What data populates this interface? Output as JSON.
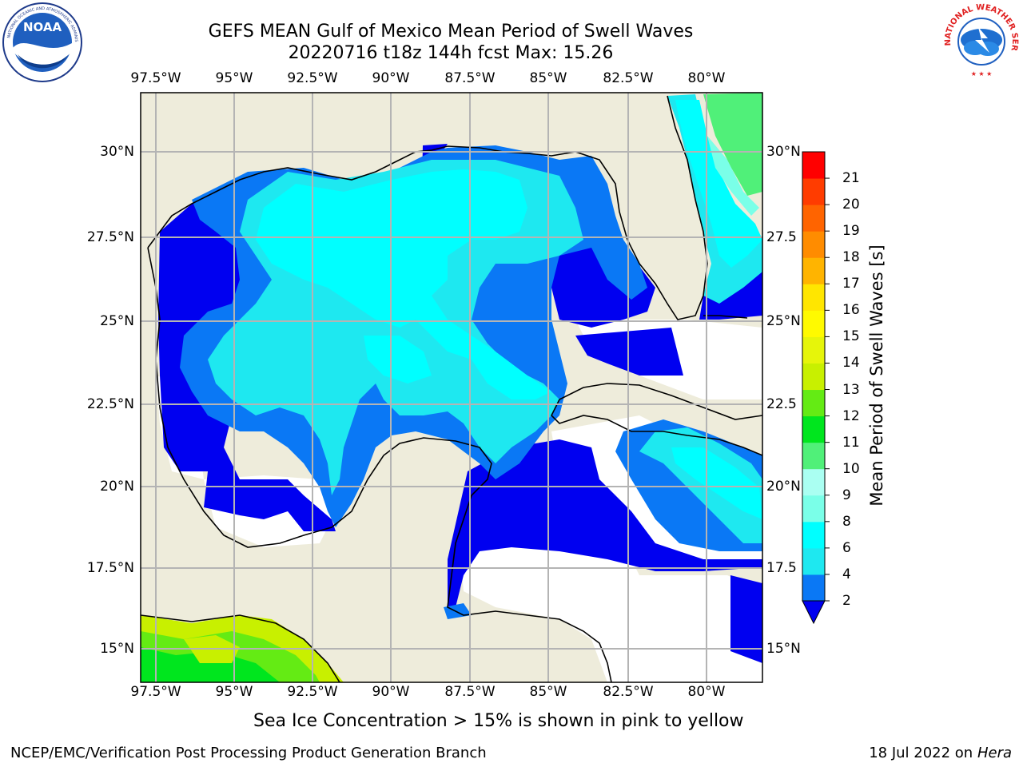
{
  "title": {
    "line1": "GEFS MEAN Gulf of Mexico Mean Period of Swell Waves",
    "line2": "20220716 t18z 144h fcst   Max: 15.26"
  },
  "logos": {
    "left": {
      "name": "noaa-logo",
      "text": "NOAA"
    },
    "right": {
      "name": "national-weather-service-logo",
      "text": "NATIONAL WEATHER SERVICE"
    }
  },
  "map": {
    "longitude_labels": [
      "97.5°W",
      "95°W",
      "92.5°W",
      "90°W",
      "87.5°W",
      "85°W",
      "82.5°W",
      "80°W"
    ],
    "latitude_labels_left": [
      "30°N",
      "27.5°N",
      "25°N",
      "22.5°N",
      "20°N",
      "17.5°N",
      "15°N"
    ],
    "latitude_labels_right": [
      "30°N",
      "27.5",
      "25°N",
      "22.5",
      "20°N",
      "17.5",
      "15°N"
    ],
    "colors": {
      "land": "#eeecdb",
      "no_data": "#ffffff",
      "grid": "#b4b4b4",
      "coast": "#000000"
    }
  },
  "colorbar": {
    "label": "Mean Period of Swell Waves [s]",
    "ticks": [
      "2",
      "4",
      "6",
      "8",
      "9",
      "10",
      "11",
      "12",
      "13",
      "14",
      "15",
      "16",
      "17",
      "18",
      "19",
      "20",
      "21"
    ],
    "bins": [
      {
        "from": 2,
        "to": 4,
        "color": "#0a78f5"
      },
      {
        "from": 4,
        "to": 6,
        "color": "#1ee8f0"
      },
      {
        "from": 6,
        "to": 8,
        "color": "#00ffff"
      },
      {
        "from": 8,
        "to": 9,
        "color": "#7affe8"
      },
      {
        "from": 9,
        "to": 10,
        "color": "#aafff2"
      },
      {
        "from": 10,
        "to": 11,
        "color": "#50f079"
      },
      {
        "from": 11,
        "to": 12,
        "color": "#00e61e"
      },
      {
        "from": 12,
        "to": 13,
        "color": "#64eb14"
      },
      {
        "from": 13,
        "to": 14,
        "color": "#c8f000"
      },
      {
        "from": 14,
        "to": 15,
        "color": "#e6f50a"
      },
      {
        "from": 15,
        "to": 16,
        "color": "#fffa00"
      },
      {
        "from": 16,
        "to": 17,
        "color": "#ffe600"
      },
      {
        "from": 17,
        "to": 18,
        "color": "#ffb400"
      },
      {
        "from": 18,
        "to": 19,
        "color": "#ff8c00"
      },
      {
        "from": 19,
        "to": 20,
        "color": "#ff6400"
      },
      {
        "from": 20,
        "to": 21,
        "color": "#ff3c00"
      },
      {
        "from": 21,
        "to": 22,
        "color": "#ff0000"
      }
    ],
    "under_color": "#0000f0"
  },
  "notes": {
    "ice": "Sea Ice Concentration > 15% is shown in pink to yellow"
  },
  "footer": {
    "left": "NCEP/EMC/Verification Post Processing Product Generation Branch",
    "date": "18 Jul 2022 on ",
    "machine": "Hera"
  }
}
